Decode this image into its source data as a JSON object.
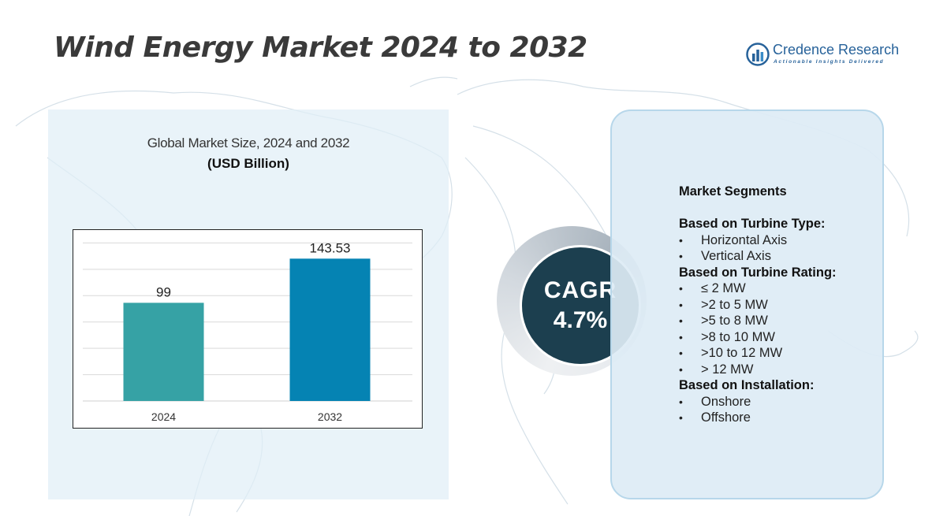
{
  "title": "Wind Energy Market 2024 to 2032",
  "logo": {
    "name": "Credence Research",
    "tagline": "Actionable Insights Delivered"
  },
  "chart_title": "Global Market Size, 2024 and 2032",
  "chart_unit": "(USD Billion)",
  "chart_data": {
    "type": "bar",
    "categories": [
      "2024",
      "2032"
    ],
    "values": [
      99,
      143.53
    ],
    "value_labels": [
      "99",
      "143.53"
    ],
    "colors": [
      "#36a2a5",
      "#0583b3"
    ],
    "ylim": [
      0,
      170
    ],
    "grid": true
  },
  "cagr": {
    "label": "CAGR",
    "value": "4.7%"
  },
  "segments": {
    "heading": "Market Segments",
    "groups": [
      {
        "title": "Based on Turbine Type:",
        "items": [
          "Horizontal Axis",
          "Vertical Axis"
        ]
      },
      {
        "title": "Based on Turbine Rating:",
        "items": [
          "≤ 2 MW",
          ">2 to 5 MW",
          ">5 to 8 MW",
          ">8 to 10 MW",
          ">10 to 12 MW",
          "> 12 MW"
        ]
      },
      {
        "title": "Based on Installation:",
        "items": [
          "Onshore",
          "Offshore"
        ]
      }
    ]
  },
  "colors": {
    "title": "#3a3a3a",
    "brand": "#27629a",
    "cagr_circle": "#1c3f4f",
    "panel": "#e1eef7"
  }
}
